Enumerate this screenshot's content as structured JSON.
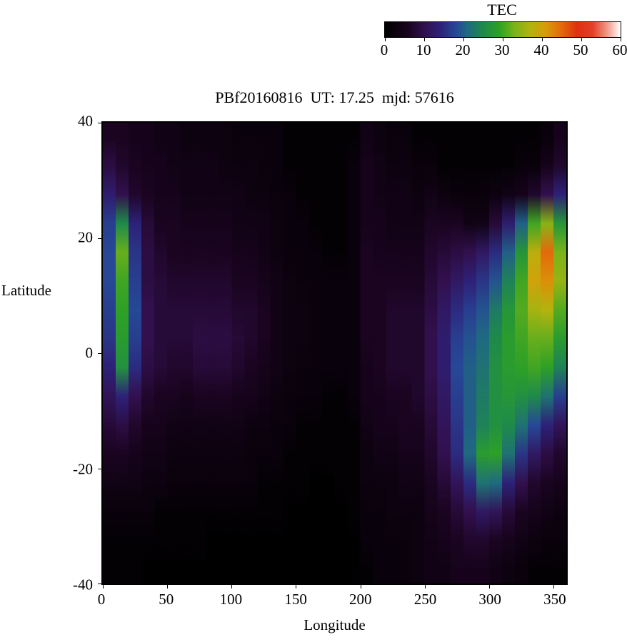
{
  "chart_data": {
    "type": "heatmap",
    "title": "PBf20160816  UT: 17.25  mjd: 57616",
    "xlabel": "Longitude",
    "ylabel": "Latitude",
    "x_range": [
      0,
      360
    ],
    "y_range": [
      -40,
      40
    ],
    "x_ticks": [
      0,
      50,
      100,
      150,
      200,
      250,
      300,
      350
    ],
    "y_ticks": [
      40,
      20,
      0,
      -20,
      -40
    ],
    "colorbar": {
      "label": "TEC",
      "min": 0,
      "max": 60,
      "ticks": [
        0,
        10,
        20,
        30,
        40,
        50,
        60
      ]
    },
    "grid": {
      "lon_start": 0,
      "lon_step": 10,
      "lat_top": 40,
      "lat_step": 5
    },
    "palette_stops": [
      [
        0,
        "#000000"
      ],
      [
        6,
        "#1a0420"
      ],
      [
        10,
        "#32104e"
      ],
      [
        14,
        "#2d2178"
      ],
      [
        18,
        "#264896"
      ],
      [
        21,
        "#1f6a80"
      ],
      [
        25,
        "#1e8a4a"
      ],
      [
        29,
        "#2da026"
      ],
      [
        33,
        "#7ab318"
      ],
      [
        37,
        "#b3b30e"
      ],
      [
        41,
        "#d89c08"
      ],
      [
        45,
        "#e36a0b"
      ],
      [
        49,
        "#e03010"
      ],
      [
        53,
        "#e4402a"
      ],
      [
        56,
        "#ef8876"
      ],
      [
        58,
        "#f6beb4"
      ],
      [
        60,
        "#ffffff"
      ]
    ],
    "values": [
      [
        6,
        6,
        5,
        5,
        4,
        4,
        3,
        3,
        3,
        3,
        2,
        2,
        2,
        2,
        1,
        1,
        1,
        1,
        1,
        1,
        4,
        3,
        2,
        2,
        1,
        1,
        1,
        1,
        1,
        1,
        1,
        1,
        1,
        1,
        2,
        5
      ],
      [
        9,
        7,
        6,
        5,
        5,
        4,
        4,
        4,
        4,
        3,
        3,
        3,
        2,
        2,
        1,
        1,
        1,
        1,
        1,
        2,
        5,
        4,
        3,
        3,
        2,
        2,
        1,
        1,
        1,
        1,
        1,
        1,
        2,
        2,
        5,
        7
      ],
      [
        13,
        10,
        7,
        6,
        5,
        5,
        4,
        4,
        4,
        4,
        4,
        3,
        3,
        2,
        2,
        1,
        1,
        1,
        1,
        2,
        5,
        4,
        4,
        4,
        3,
        4,
        3,
        2,
        2,
        2,
        3,
        4,
        5,
        7,
        10,
        14
      ],
      [
        17,
        25,
        14,
        8,
        6,
        6,
        5,
        5,
        5,
        5,
        4,
        4,
        4,
        3,
        2,
        2,
        1,
        1,
        1,
        2,
        5,
        5,
        4,
        4,
        4,
        6,
        6,
        6,
        4,
        4,
        8,
        13,
        20,
        30,
        34,
        27
      ],
      [
        18,
        32,
        16,
        9,
        7,
        6,
        6,
        6,
        6,
        6,
        5,
        5,
        4,
        3,
        2,
        2,
        2,
        1,
        1,
        2,
        6,
        5,
        5,
        5,
        5,
        7,
        8,
        9,
        10,
        12,
        15,
        20,
        27,
        38,
        45,
        33
      ],
      [
        18,
        30,
        17,
        9,
        8,
        7,
        7,
        7,
        7,
        7,
        6,
        6,
        5,
        4,
        3,
        2,
        2,
        2,
        2,
        2,
        6,
        6,
        6,
        6,
        6,
        8,
        10,
        12,
        14,
        16,
        19,
        24,
        30,
        40,
        42,
        35
      ],
      [
        17,
        29,
        18,
        10,
        8,
        8,
        8,
        8,
        8,
        8,
        7,
        7,
        6,
        4,
        3,
        3,
        2,
        2,
        2,
        2,
        6,
        6,
        7,
        7,
        7,
        9,
        12,
        15,
        17,
        19,
        23,
        27,
        31,
        36,
        37,
        31
      ],
      [
        16,
        28,
        17,
        10,
        8,
        8,
        8,
        9,
        9,
        9,
        8,
        7,
        6,
        4,
        3,
        3,
        2,
        2,
        2,
        2,
        6,
        6,
        7,
        7,
        7,
        10,
        13,
        17,
        19,
        21,
        25,
        28,
        30,
        32,
        32,
        28
      ],
      [
        14,
        26,
        15,
        9,
        8,
        7,
        7,
        8,
        8,
        8,
        7,
        6,
        5,
        4,
        3,
        2,
        2,
        2,
        2,
        2,
        5,
        6,
        7,
        7,
        7,
        10,
        13,
        18,
        20,
        22,
        26,
        28,
        29,
        30,
        29,
        24
      ],
      [
        11,
        14,
        10,
        7,
        6,
        6,
        5,
        6,
        6,
        6,
        5,
        5,
        4,
        3,
        2,
        2,
        2,
        1,
        1,
        2,
        5,
        5,
        6,
        6,
        7,
        9,
        12,
        17,
        20,
        23,
        26,
        27,
        26,
        25,
        22,
        17
      ],
      [
        8,
        9,
        7,
        5,
        5,
        4,
        4,
        4,
        4,
        4,
        4,
        3,
        3,
        2,
        2,
        1,
        1,
        1,
        1,
        1,
        4,
        5,
        5,
        6,
        6,
        8,
        11,
        16,
        20,
        24,
        26,
        25,
        22,
        18,
        14,
        11
      ],
      [
        6,
        6,
        5,
        4,
        4,
        3,
        3,
        3,
        3,
        3,
        3,
        2,
        2,
        2,
        1,
        1,
        1,
        1,
        1,
        1,
        3,
        4,
        4,
        5,
        5,
        7,
        10,
        15,
        21,
        28,
        29,
        22,
        16,
        12,
        9,
        7
      ],
      [
        4,
        4,
        4,
        3,
        3,
        2,
        2,
        2,
        2,
        2,
        2,
        2,
        1,
        1,
        1,
        1,
        0,
        0,
        1,
        1,
        3,
        3,
        3,
        4,
        4,
        6,
        8,
        11,
        15,
        22,
        21,
        14,
        10,
        7,
        6,
        5
      ],
      [
        2,
        2,
        2,
        2,
        1,
        1,
        1,
        1,
        1,
        1,
        1,
        1,
        1,
        1,
        0,
        0,
        0,
        0,
        0,
        1,
        2,
        2,
        3,
        3,
        3,
        5,
        6,
        8,
        10,
        12,
        11,
        8,
        6,
        5,
        4,
        3
      ],
      [
        1,
        1,
        1,
        1,
        1,
        1,
        1,
        1,
        0,
        0,
        0,
        0,
        0,
        0,
        0,
        0,
        0,
        0,
        0,
        0,
        2,
        2,
        2,
        2,
        3,
        4,
        5,
        6,
        7,
        7,
        6,
        5,
        4,
        3,
        2,
        2
      ],
      [
        1,
        1,
        1,
        0,
        0,
        0,
        0,
        0,
        0,
        0,
        0,
        0,
        0,
        0,
        0,
        0,
        0,
        0,
        0,
        0,
        1,
        2,
        2,
        2,
        3,
        4,
        4,
        5,
        5,
        5,
        4,
        3,
        2,
        1,
        1,
        1
      ]
    ]
  }
}
